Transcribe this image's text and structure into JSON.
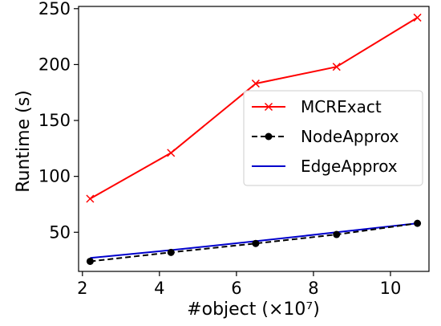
{
  "chart_data": {
    "type": "line",
    "xlabel": "#object (×10⁷)",
    "ylabel": "Runtime (s)",
    "xlim": [
      1.9,
      11.0
    ],
    "ylim": [
      15,
      252
    ],
    "xticks": [
      2,
      4,
      6,
      8,
      10
    ],
    "yticks": [
      50,
      100,
      150,
      200,
      250
    ],
    "grid": false,
    "legend_position": "center-right",
    "x": [
      2.2,
      4.3,
      6.5,
      8.6,
      10.7
    ],
    "series": [
      {
        "name": "MCRExact",
        "values": [
          80,
          121,
          183,
          198,
          242
        ],
        "color": "#ff0000",
        "marker": "x",
        "dash": "solid"
      },
      {
        "name": "NodeApprox",
        "values": [
          24,
          32,
          40,
          48,
          58
        ],
        "color": "#000000",
        "marker": "circle",
        "dash": "dashed"
      },
      {
        "name": "EdgeApprox",
        "values": [
          27,
          34,
          42,
          50,
          58
        ],
        "color": "#0000cc",
        "marker": "none",
        "dash": "solid"
      }
    ]
  }
}
